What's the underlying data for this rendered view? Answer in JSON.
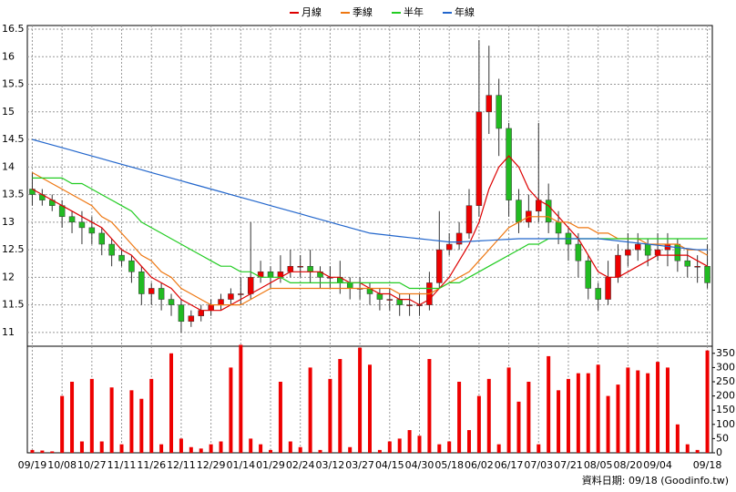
{
  "chart_data": {
    "type": "candlestick",
    "footer": "資料日期: 09/18 (Goodinfo.tw)",
    "categories": [
      "09/19",
      null,
      null,
      "10/08",
      null,
      null,
      "10/27",
      null,
      null,
      "11/11",
      null,
      null,
      "11/26",
      null,
      null,
      "12/11",
      null,
      null,
      "12/29",
      null,
      null,
      "01/14",
      null,
      null,
      "01/29",
      null,
      null,
      "02/24",
      null,
      null,
      "03/12",
      null,
      null,
      "03/27",
      null,
      null,
      "04/15",
      null,
      null,
      "04/30",
      null,
      null,
      "05/18",
      null,
      null,
      "06/02",
      null,
      null,
      "06/17",
      null,
      null,
      "07/03",
      null,
      null,
      "07/21",
      null,
      null,
      "08/05",
      null,
      null,
      "08/20",
      null,
      null,
      "09/04",
      null,
      null,
      null,
      null,
      "09/18"
    ],
    "open": [
      13.6,
      13.5,
      13.4,
      13.3,
      13.1,
      13.0,
      12.9,
      12.8,
      12.6,
      12.4,
      12.3,
      12.1,
      11.7,
      11.8,
      11.6,
      11.5,
      11.2,
      11.3,
      11.4,
      11.5,
      11.6,
      11.7,
      11.7,
      12.0,
      12.1,
      12.0,
      12.1,
      12.2,
      12.2,
      12.1,
      12.0,
      12.0,
      11.9,
      11.8,
      11.8,
      11.7,
      11.6,
      11.6,
      11.5,
      11.5,
      11.5,
      11.9,
      12.5,
      12.6,
      12.8,
      13.3,
      15.0,
      15.3,
      14.7,
      13.4,
      13.0,
      13.2,
      13.4,
      13.0,
      12.8,
      12.6,
      12.3,
      11.8,
      11.6,
      12.0,
      12.4,
      12.5,
      12.6,
      12.4,
      12.5,
      12.6,
      12.3,
      12.2,
      12.2
    ],
    "high": [
      13.9,
      13.6,
      13.5,
      13.4,
      13.2,
      13.2,
      13.1,
      12.9,
      12.7,
      12.5,
      12.4,
      12.2,
      11.9,
      11.9,
      11.7,
      11.6,
      11.4,
      11.5,
      11.6,
      11.7,
      11.8,
      12.0,
      13.0,
      12.3,
      12.2,
      12.4,
      12.5,
      12.4,
      12.5,
      12.2,
      12.2,
      12.3,
      12.0,
      12.0,
      11.9,
      11.8,
      11.8,
      11.7,
      11.7,
      11.7,
      12.1,
      13.2,
      12.8,
      13.0,
      13.6,
      16.3,
      16.2,
      15.6,
      14.8,
      13.6,
      13.5,
      14.8,
      13.7,
      13.2,
      12.9,
      12.8,
      12.4,
      11.9,
      12.3,
      12.6,
      12.8,
      12.8,
      12.7,
      12.8,
      12.8,
      12.7,
      12.5,
      12.4,
      12.6
    ],
    "low": [
      13.3,
      13.3,
      13.2,
      12.9,
      12.8,
      12.6,
      12.6,
      12.4,
      12.2,
      12.2,
      11.9,
      11.5,
      11.5,
      11.4,
      11.3,
      11.0,
      11.1,
      11.2,
      11.3,
      11.4,
      11.5,
      11.5,
      11.6,
      11.9,
      11.8,
      11.9,
      12.0,
      12.0,
      11.9,
      11.8,
      11.8,
      11.7,
      11.6,
      11.6,
      11.5,
      11.4,
      11.4,
      11.3,
      11.3,
      11.3,
      11.4,
      11.8,
      12.4,
      12.5,
      12.7,
      13.1,
      14.6,
      14.2,
      13.1,
      12.8,
      12.9,
      13.0,
      12.8,
      12.6,
      12.3,
      12.0,
      11.6,
      11.4,
      11.5,
      11.9,
      12.2,
      12.3,
      12.2,
      12.3,
      12.2,
      12.1,
      12.0,
      11.9,
      11.8
    ],
    "close": [
      13.5,
      13.4,
      13.3,
      13.1,
      13.0,
      12.9,
      12.8,
      12.6,
      12.4,
      12.3,
      12.1,
      11.7,
      11.8,
      11.6,
      11.5,
      11.2,
      11.3,
      11.4,
      11.5,
      11.6,
      11.7,
      11.7,
      12.0,
      12.1,
      12.0,
      12.1,
      12.2,
      12.2,
      12.1,
      12.0,
      12.0,
      11.9,
      11.8,
      11.8,
      11.7,
      11.6,
      11.6,
      11.5,
      11.5,
      11.5,
      11.9,
      12.5,
      12.6,
      12.8,
      13.3,
      15.0,
      15.3,
      14.7,
      13.4,
      13.0,
      13.2,
      13.4,
      13.0,
      12.8,
      12.6,
      12.3,
      11.8,
      11.6,
      12.0,
      12.4,
      12.5,
      12.6,
      12.4,
      12.5,
      12.6,
      12.3,
      12.2,
      12.2,
      11.9
    ],
    "up_color": "#ee0000",
    "down_color": "#22bb22",
    "volume": {
      "color": "#ee0000",
      "axis": "y2",
      "values": [
        10,
        8,
        5,
        200,
        250,
        40,
        260,
        40,
        230,
        30,
        220,
        190,
        260,
        30,
        350,
        50,
        20,
        15,
        30,
        40,
        300,
        380,
        50,
        30,
        10,
        250,
        40,
        20,
        300,
        10,
        260,
        330,
        20,
        370,
        310,
        10,
        40,
        50,
        80,
        60,
        330,
        30,
        40,
        250,
        80,
        200,
        260,
        30,
        300,
        180,
        250,
        30,
        340,
        220,
        260,
        280,
        280,
        310,
        200,
        240,
        300,
        290,
        280,
        320,
        300,
        100,
        30,
        10,
        360
      ]
    },
    "series": [
      {
        "name": "月線",
        "color": "#dd0000",
        "values": [
          13.6,
          13.5,
          13.4,
          13.3,
          13.2,
          13.1,
          13.0,
          12.9,
          12.7,
          12.5,
          12.4,
          12.2,
          12.0,
          11.9,
          11.8,
          11.6,
          11.5,
          11.4,
          11.4,
          11.4,
          11.5,
          11.6,
          11.7,
          11.8,
          11.9,
          12.0,
          12.1,
          12.1,
          12.1,
          12.1,
          12.0,
          12.0,
          11.9,
          11.9,
          11.8,
          11.7,
          11.7,
          11.6,
          11.6,
          11.5,
          11.6,
          11.8,
          12.0,
          12.3,
          12.6,
          13.0,
          13.6,
          14.0,
          14.2,
          14.0,
          13.6,
          13.4,
          13.3,
          13.1,
          12.9,
          12.7,
          12.4,
          12.1,
          12.0,
          12.0,
          12.1,
          12.2,
          12.3,
          12.4,
          12.4,
          12.4,
          12.4,
          12.3,
          12.2
        ]
      },
      {
        "name": "季線",
        "color": "#ee7711",
        "values": [
          13.9,
          13.8,
          13.7,
          13.6,
          13.5,
          13.4,
          13.3,
          13.1,
          13.0,
          12.8,
          12.6,
          12.4,
          12.3,
          12.1,
          12.0,
          11.8,
          11.7,
          11.6,
          11.5,
          11.5,
          11.5,
          11.5,
          11.6,
          11.7,
          11.8,
          11.8,
          11.8,
          11.8,
          11.8,
          11.8,
          11.8,
          11.8,
          11.8,
          11.8,
          11.8,
          11.8,
          11.8,
          11.7,
          11.7,
          11.7,
          11.7,
          11.8,
          11.9,
          12.0,
          12.1,
          12.3,
          12.5,
          12.7,
          12.9,
          13.0,
          13.1,
          13.1,
          13.1,
          13.0,
          13.0,
          12.9,
          12.9,
          12.8,
          12.8,
          12.7,
          12.7,
          12.7,
          12.6,
          12.6,
          12.6,
          12.6,
          12.5,
          12.5,
          12.4
        ]
      },
      {
        "name": "半年",
        "color": "#22cc22",
        "values": [
          13.8,
          13.8,
          13.8,
          13.8,
          13.7,
          13.7,
          13.6,
          13.5,
          13.4,
          13.3,
          13.2,
          13.0,
          12.9,
          12.8,
          12.7,
          12.6,
          12.5,
          12.4,
          12.3,
          12.2,
          12.2,
          12.1,
          12.1,
          12.0,
          12.0,
          12.0,
          11.9,
          11.9,
          11.9,
          11.9,
          11.9,
          11.9,
          11.9,
          11.9,
          11.9,
          11.9,
          11.9,
          11.9,
          11.8,
          11.8,
          11.8,
          11.8,
          11.9,
          11.9,
          12.0,
          12.1,
          12.2,
          12.3,
          12.4,
          12.5,
          12.6,
          12.6,
          12.7,
          12.7,
          12.7,
          12.7,
          12.7,
          12.7,
          12.7,
          12.7,
          12.7,
          12.7,
          12.7,
          12.7,
          12.7,
          12.7,
          12.7,
          12.7,
          12.7
        ]
      },
      {
        "name": "年線",
        "color": "#2266cc",
        "values": [
          14.5,
          14.45,
          14.4,
          14.35,
          14.3,
          14.25,
          14.2,
          14.15,
          14.1,
          14.05,
          14.0,
          13.95,
          13.9,
          13.85,
          13.8,
          13.75,
          13.7,
          13.65,
          13.6,
          13.55,
          13.5,
          13.45,
          13.4,
          13.35,
          13.3,
          13.25,
          13.2,
          13.15,
          13.1,
          13.05,
          13.0,
          12.95,
          12.9,
          12.85,
          12.8,
          12.78,
          12.76,
          12.74,
          12.72,
          12.7,
          12.68,
          12.66,
          12.64,
          12.64,
          12.65,
          12.66,
          12.67,
          12.68,
          12.69,
          12.7,
          12.7,
          12.7,
          12.7,
          12.7,
          12.7,
          12.7,
          12.7,
          12.7,
          12.68,
          12.66,
          12.64,
          12.62,
          12.6,
          12.58,
          12.56,
          12.54,
          12.52,
          12.5,
          12.5
        ]
      }
    ],
    "ylim": [
      10.75,
      16.5
    ],
    "yticks": [
      11,
      11.5,
      12,
      12.5,
      13,
      13.5,
      14,
      14.5,
      15,
      15.5,
      16,
      16.5
    ],
    "y2lim": [
      0,
      375
    ],
    "y2ticks": [
      0,
      50,
      100,
      150,
      200,
      250,
      300,
      350
    ],
    "grid": true,
    "legend": "top"
  }
}
